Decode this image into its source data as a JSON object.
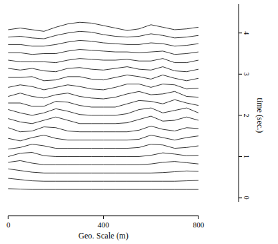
{
  "chart_data": {
    "type": "line",
    "color": "#000000",
    "x_label": "Geo. Scale (m)",
    "y_label": "time (sec.)",
    "x": [
      0,
      50,
      100,
      150,
      200,
      250,
      300,
      350,
      400,
      450,
      500,
      550,
      600,
      650,
      700,
      750,
      800
    ],
    "xlim": [
      0,
      800
    ],
    "xticks": [
      0,
      400,
      800
    ],
    "ylim": [
      -0.1,
      4.7
    ],
    "yticks": [
      0,
      1,
      2,
      3,
      4
    ],
    "series": [
      {
        "values": [
          0.22,
          0.21,
          0.2,
          0.2,
          0.2,
          0.2,
          0.2,
          0.2,
          0.2,
          0.2,
          0.2,
          0.2,
          0.2,
          0.2,
          0.2,
          0.2,
          0.2
        ]
      },
      {
        "values": [
          0.47,
          0.44,
          0.41,
          0.4,
          0.4,
          0.4,
          0.4,
          0.4,
          0.4,
          0.4,
          0.4,
          0.4,
          0.4,
          0.4,
          0.4,
          0.41,
          0.42
        ]
      },
      {
        "values": [
          0.7,
          0.66,
          0.62,
          0.6,
          0.6,
          0.6,
          0.6,
          0.6,
          0.6,
          0.6,
          0.6,
          0.6,
          0.6,
          0.61,
          0.63,
          0.65,
          0.64
        ]
      },
      {
        "values": [
          0.86,
          0.9,
          0.84,
          0.8,
          0.8,
          0.8,
          0.8,
          0.8,
          0.8,
          0.8,
          0.8,
          0.8,
          0.82,
          0.86,
          0.88,
          0.85,
          0.82
        ]
      },
      {
        "values": [
          1.0,
          1.08,
          1.1,
          1.02,
          1.0,
          1.0,
          1.0,
          1.0,
          1.0,
          1.0,
          1.0,
          1.0,
          1.03,
          1.09,
          1.06,
          1.02,
          1.03
        ]
      },
      {
        "values": [
          1.18,
          1.22,
          1.3,
          1.26,
          1.2,
          1.2,
          1.2,
          1.2,
          1.2,
          1.2,
          1.2,
          1.22,
          1.3,
          1.28,
          1.2,
          1.22,
          1.26
        ]
      },
      {
        "values": [
          1.44,
          1.38,
          1.46,
          1.52,
          1.44,
          1.4,
          1.4,
          1.4,
          1.4,
          1.4,
          1.4,
          1.42,
          1.52,
          1.46,
          1.4,
          1.46,
          1.5
        ]
      },
      {
        "values": [
          1.7,
          1.6,
          1.62,
          1.72,
          1.7,
          1.62,
          1.6,
          1.6,
          1.6,
          1.6,
          1.6,
          1.64,
          1.74,
          1.66,
          1.62,
          1.7,
          1.68
        ]
      },
      {
        "values": [
          1.92,
          1.84,
          1.8,
          1.88,
          1.96,
          1.88,
          1.8,
          1.8,
          1.8,
          1.8,
          1.82,
          1.9,
          1.98,
          1.86,
          1.88,
          1.96,
          1.88
        ]
      },
      {
        "values": [
          2.14,
          2.06,
          2.0,
          2.06,
          2.16,
          2.1,
          2.02,
          2.0,
          2.0,
          2.0,
          2.04,
          2.14,
          2.18,
          2.06,
          2.12,
          2.18,
          2.06
        ]
      },
      {
        "values": [
          2.3,
          2.3,
          2.22,
          2.22,
          2.34,
          2.32,
          2.24,
          2.2,
          2.2,
          2.2,
          2.28,
          2.36,
          2.34,
          2.28,
          2.38,
          2.3,
          2.24
        ]
      },
      {
        "values": [
          2.46,
          2.54,
          2.46,
          2.42,
          2.5,
          2.54,
          2.46,
          2.42,
          2.4,
          2.44,
          2.52,
          2.58,
          2.5,
          2.52,
          2.58,
          2.46,
          2.44
        ]
      },
      {
        "values": [
          2.68,
          2.74,
          2.7,
          2.62,
          2.68,
          2.74,
          2.7,
          2.64,
          2.62,
          2.68,
          2.76,
          2.76,
          2.68,
          2.76,
          2.74,
          2.64,
          2.66
        ]
      },
      {
        "values": [
          2.92,
          2.92,
          2.94,
          2.84,
          2.86,
          2.94,
          2.94,
          2.88,
          2.86,
          2.92,
          2.98,
          2.94,
          2.88,
          2.98,
          2.9,
          2.84,
          2.9
        ]
      },
      {
        "values": [
          3.14,
          3.1,
          3.14,
          3.08,
          3.06,
          3.14,
          3.16,
          3.12,
          3.1,
          3.14,
          3.18,
          3.12,
          3.1,
          3.18,
          3.08,
          3.06,
          3.12
        ]
      },
      {
        "values": [
          3.34,
          3.3,
          3.3,
          3.3,
          3.28,
          3.34,
          3.38,
          3.36,
          3.34,
          3.34,
          3.36,
          3.32,
          3.32,
          3.38,
          3.28,
          3.28,
          3.34
        ]
      },
      {
        "values": [
          3.52,
          3.52,
          3.48,
          3.5,
          3.5,
          3.56,
          3.6,
          3.58,
          3.56,
          3.54,
          3.54,
          3.52,
          3.54,
          3.56,
          3.48,
          3.5,
          3.54
        ]
      },
      {
        "values": [
          3.72,
          3.72,
          3.68,
          3.68,
          3.72,
          3.78,
          3.82,
          3.8,
          3.76,
          3.74,
          3.72,
          3.72,
          3.76,
          3.74,
          3.68,
          3.7,
          3.74
        ]
      },
      {
        "values": [
          3.9,
          3.92,
          3.88,
          3.86,
          3.94,
          4.0,
          4.04,
          4.02,
          3.96,
          3.92,
          3.9,
          3.92,
          3.98,
          3.94,
          3.88,
          3.9,
          3.94
        ]
      },
      {
        "values": [
          4.08,
          4.12,
          4.08,
          4.04,
          4.14,
          4.22,
          4.26,
          4.24,
          4.18,
          4.12,
          4.06,
          4.1,
          4.2,
          4.14,
          4.08,
          4.1,
          4.14
        ]
      }
    ]
  }
}
